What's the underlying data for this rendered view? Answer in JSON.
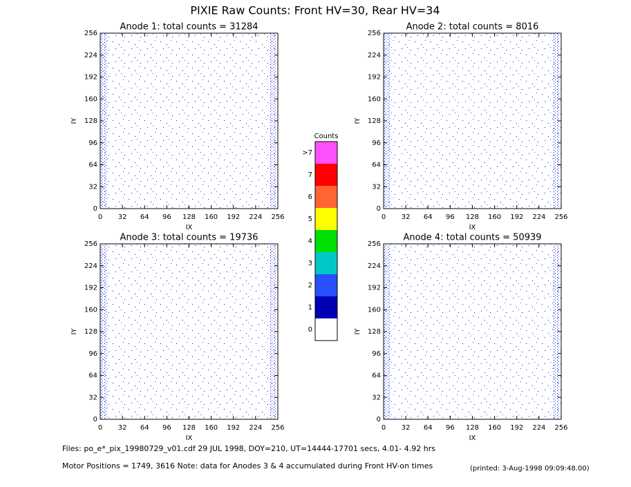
{
  "chart_data": {
    "type": "heatmap",
    "title": "PIXIE Raw Counts:  Front HV=30, Rear HV=34",
    "panels": [
      {
        "title": "Anode 1: total counts = 31284",
        "xlabel": "IX",
        "ylabel": "IY",
        "xlim": [
          0,
          256
        ],
        "ylim": [
          0,
          256
        ],
        "xticks": [
          0,
          32,
          64,
          96,
          128,
          160,
          192,
          224,
          256
        ],
        "yticks": [
          0,
          32,
          64,
          96,
          128,
          160,
          192,
          224,
          256
        ]
      },
      {
        "title": "Anode 2: total counts = 8016",
        "xlabel": "IX",
        "ylabel": "IY",
        "xlim": [
          0,
          256
        ],
        "ylim": [
          0,
          256
        ],
        "xticks": [
          0,
          32,
          64,
          96,
          128,
          160,
          192,
          224,
          256
        ],
        "yticks": [
          0,
          32,
          64,
          96,
          128,
          160,
          192,
          224,
          256
        ]
      },
      {
        "title": "Anode 3: total counts = 19736",
        "xlabel": "IX",
        "ylabel": "IY",
        "xlim": [
          0,
          256
        ],
        "ylim": [
          0,
          256
        ],
        "xticks": [
          0,
          32,
          64,
          96,
          128,
          160,
          192,
          224,
          256
        ],
        "yticks": [
          0,
          32,
          64,
          96,
          128,
          160,
          192,
          224,
          256
        ]
      },
      {
        "title": "Anode 4: total counts = 50939",
        "xlabel": "IX",
        "ylabel": "IY",
        "xlim": [
          0,
          256
        ],
        "ylim": [
          0,
          256
        ],
        "xticks": [
          0,
          32,
          64,
          96,
          128,
          160,
          192,
          224,
          256
        ],
        "yticks": [
          0,
          32,
          64,
          96,
          128,
          160,
          192,
          224,
          256
        ]
      }
    ],
    "colorbar": {
      "title": "Counts",
      "levels": [
        "0",
        "1",
        "2",
        "3",
        "4",
        "5",
        "6",
        "7",
        ">7"
      ],
      "colors": [
        "#ffffff",
        "#0000b4",
        "#2850ff",
        "#00c8c8",
        "#00e000",
        "#ffff00",
        "#ff6432",
        "#ff0000",
        "#ff50ff"
      ]
    },
    "footer": {
      "files": "Files: po_e*_pix_19980729_v01.cdf    29 JUL 1998, DOY=210, UT=14444-17701 secs,  4.01- 4.92 hrs",
      "motor": "Motor Positions = 1749, 3616   Note: data for Anodes 3 & 4 accumulated during Front HV-on times",
      "printed": "(printed:  3-Aug-1998 09:09:48.00)"
    }
  }
}
